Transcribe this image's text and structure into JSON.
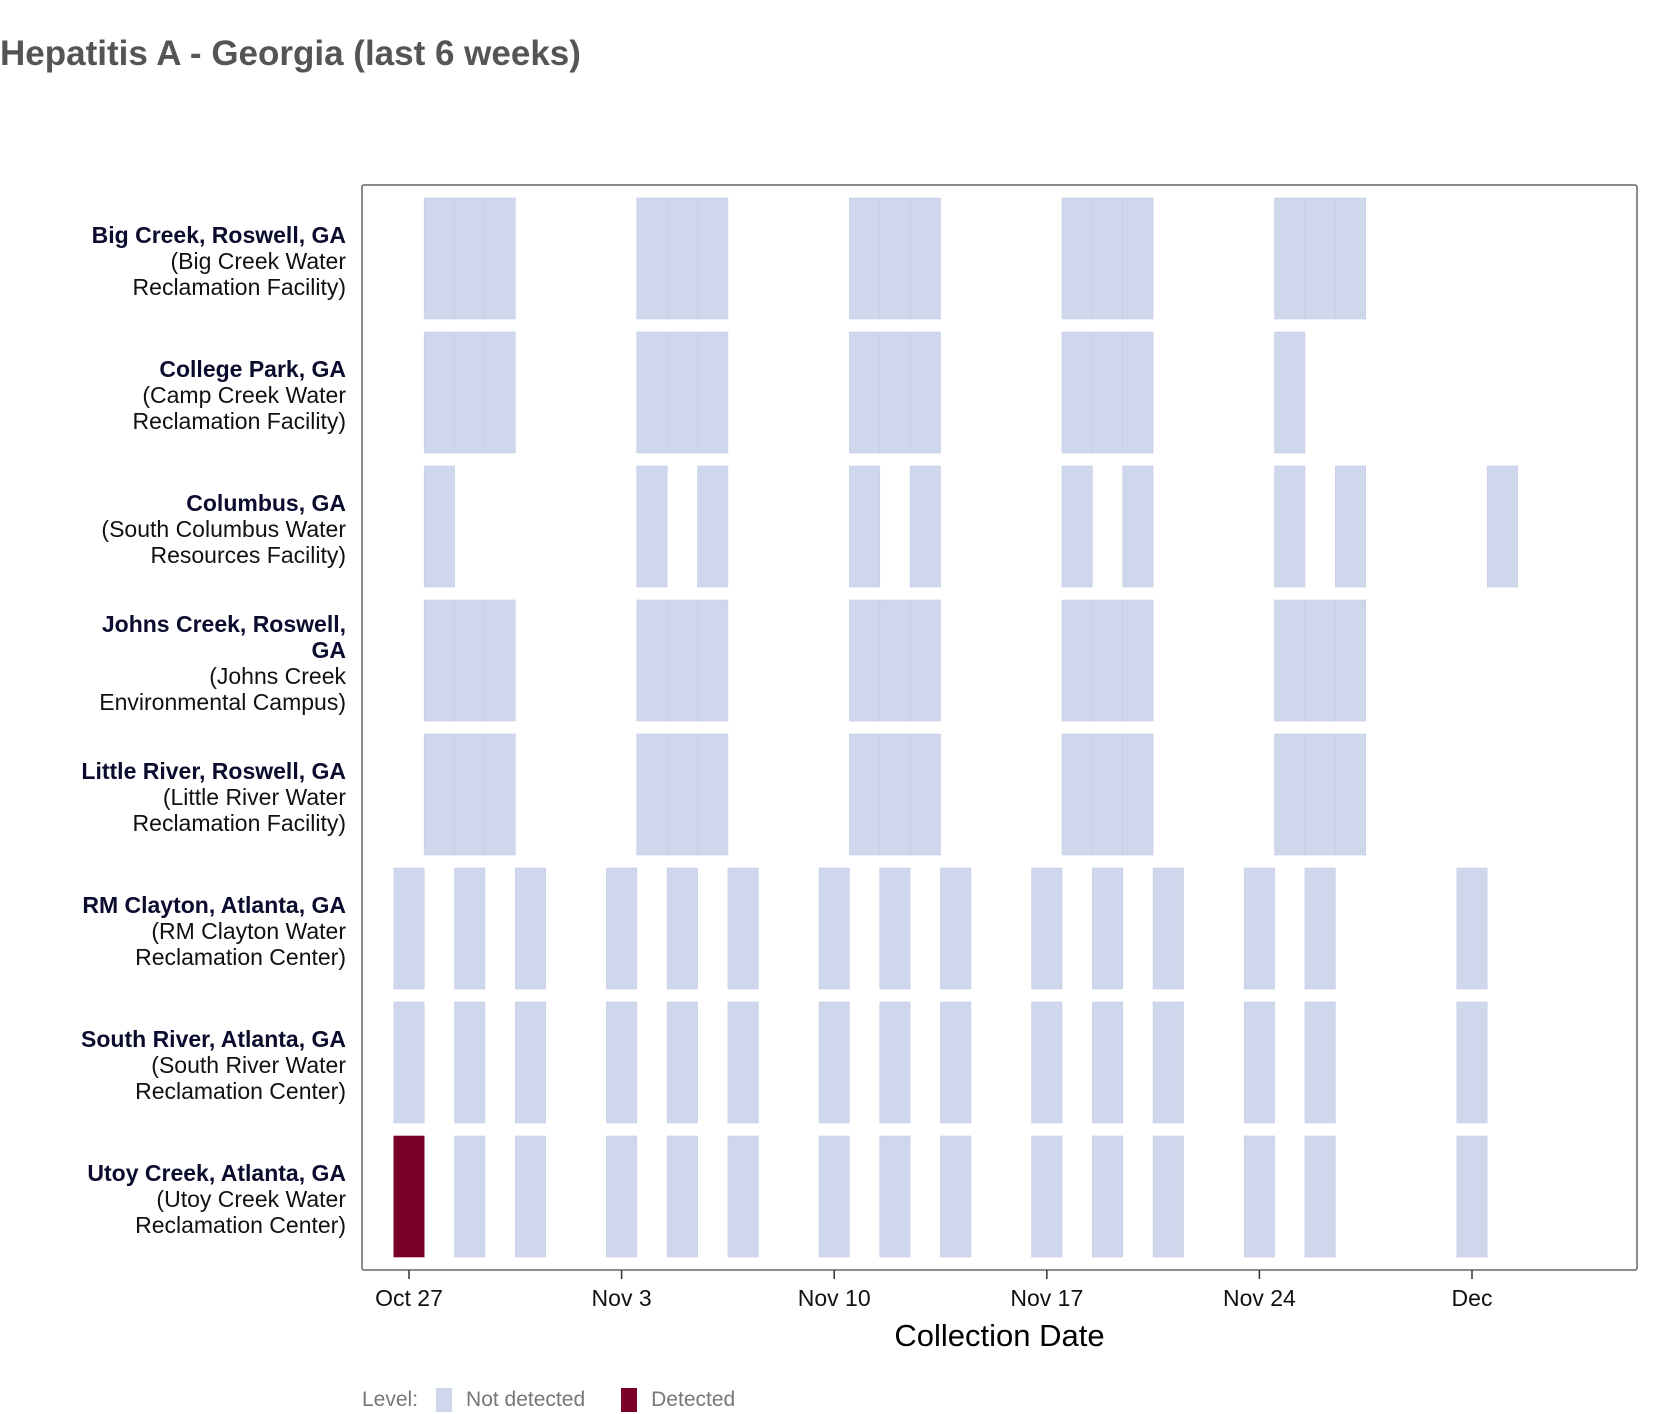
{
  "title": "Hepatitis A - Georgia (last 6 weeks)",
  "chart_data": {
    "type": "heatmap",
    "title": "Hepatitis A - Georgia (last 6 weeks)",
    "xlabel": "Collection Date",
    "ylabel": "",
    "x_ticks": [
      {
        "label": "Oct 27",
        "day": 0
      },
      {
        "label": "Nov 3",
        "day": 7
      },
      {
        "label": "Nov 10",
        "day": 14
      },
      {
        "label": "Nov 17",
        "day": 21
      },
      {
        "label": "Nov 24",
        "day": 28
      },
      {
        "label": "Dec",
        "day": 35
      }
    ],
    "x_range_days": [
      -1.5,
      40.5
    ],
    "day_zero_date": "Oct 27",
    "legend": {
      "title": "Level:",
      "position": "bottom",
      "items": [
        {
          "label": "Not detected",
          "color": "#cfd7ec"
        },
        {
          "label": "Detected",
          "color": "#7a0029"
        }
      ]
    },
    "colors": {
      "Not detected": "#cfd7ec",
      "Detected": "#7a0029"
    },
    "sites": [
      {
        "name": "Big Creek, Roswell, GA",
        "facility": "(Big Creek Water Reclamation Facility)",
        "name_lines": [
          "Big Creek, Roswell, GA"
        ],
        "facility_lines": [
          "(Big Creek Water",
          "Reclamation Facility)"
        ],
        "samples": [
          {
            "day": 1,
            "level": "Not detected"
          },
          {
            "day": 2,
            "level": "Not detected"
          },
          {
            "day": 3,
            "level": "Not detected"
          },
          {
            "day": 8,
            "level": "Not detected"
          },
          {
            "day": 9,
            "level": "Not detected"
          },
          {
            "day": 10,
            "level": "Not detected"
          },
          {
            "day": 15,
            "level": "Not detected"
          },
          {
            "day": 16,
            "level": "Not detected"
          },
          {
            "day": 17,
            "level": "Not detected"
          },
          {
            "day": 22,
            "level": "Not detected"
          },
          {
            "day": 23,
            "level": "Not detected"
          },
          {
            "day": 24,
            "level": "Not detected"
          },
          {
            "day": 29,
            "level": "Not detected"
          },
          {
            "day": 30,
            "level": "Not detected"
          },
          {
            "day": 31,
            "level": "Not detected"
          }
        ]
      },
      {
        "name": "College Park, GA",
        "facility": "(Camp Creek Water Reclamation Facility)",
        "name_lines": [
          "College Park, GA"
        ],
        "facility_lines": [
          "(Camp Creek Water",
          "Reclamation Facility)"
        ],
        "samples": [
          {
            "day": 1,
            "level": "Not detected"
          },
          {
            "day": 2,
            "level": "Not detected"
          },
          {
            "day": 3,
            "level": "Not detected"
          },
          {
            "day": 8,
            "level": "Not detected"
          },
          {
            "day": 9,
            "level": "Not detected"
          },
          {
            "day": 10,
            "level": "Not detected"
          },
          {
            "day": 15,
            "level": "Not detected"
          },
          {
            "day": 16,
            "level": "Not detected"
          },
          {
            "day": 17,
            "level": "Not detected"
          },
          {
            "day": 22,
            "level": "Not detected"
          },
          {
            "day": 23,
            "level": "Not detected"
          },
          {
            "day": 24,
            "level": "Not detected"
          },
          {
            "day": 29,
            "level": "Not detected"
          }
        ]
      },
      {
        "name": "Columbus, GA",
        "facility": "(South Columbus Water Resources Facility)",
        "name_lines": [
          "Columbus, GA"
        ],
        "facility_lines": [
          "(South Columbus Water",
          "Resources Facility)"
        ],
        "samples": [
          {
            "day": 1,
            "level": "Not detected"
          },
          {
            "day": 8,
            "level": "Not detected"
          },
          {
            "day": 10,
            "level": "Not detected"
          },
          {
            "day": 15,
            "level": "Not detected"
          },
          {
            "day": 17,
            "level": "Not detected"
          },
          {
            "day": 22,
            "level": "Not detected"
          },
          {
            "day": 24,
            "level": "Not detected"
          },
          {
            "day": 29,
            "level": "Not detected"
          },
          {
            "day": 31,
            "level": "Not detected"
          },
          {
            "day": 36,
            "level": "Not detected"
          }
        ]
      },
      {
        "name": "Johns Creek, Roswell, GA",
        "facility": "(Johns Creek Environmental Campus)",
        "name_lines": [
          "Johns Creek, Roswell,",
          "GA"
        ],
        "facility_lines": [
          "(Johns Creek",
          "Environmental Campus)"
        ],
        "samples": [
          {
            "day": 1,
            "level": "Not detected"
          },
          {
            "day": 2,
            "level": "Not detected"
          },
          {
            "day": 3,
            "level": "Not detected"
          },
          {
            "day": 8,
            "level": "Not detected"
          },
          {
            "day": 9,
            "level": "Not detected"
          },
          {
            "day": 10,
            "level": "Not detected"
          },
          {
            "day": 15,
            "level": "Not detected"
          },
          {
            "day": 16,
            "level": "Not detected"
          },
          {
            "day": 17,
            "level": "Not detected"
          },
          {
            "day": 22,
            "level": "Not detected"
          },
          {
            "day": 23,
            "level": "Not detected"
          },
          {
            "day": 24,
            "level": "Not detected"
          },
          {
            "day": 29,
            "level": "Not detected"
          },
          {
            "day": 30,
            "level": "Not detected"
          },
          {
            "day": 31,
            "level": "Not detected"
          }
        ]
      },
      {
        "name": "Little River, Roswell, GA",
        "facility": "(Little River Water Reclamation Facility)",
        "name_lines": [
          "Little River, Roswell, GA"
        ],
        "facility_lines": [
          "(Little River Water",
          "Reclamation Facility)"
        ],
        "samples": [
          {
            "day": 1,
            "level": "Not detected"
          },
          {
            "day": 2,
            "level": "Not detected"
          },
          {
            "day": 3,
            "level": "Not detected"
          },
          {
            "day": 8,
            "level": "Not detected"
          },
          {
            "day": 9,
            "level": "Not detected"
          },
          {
            "day": 10,
            "level": "Not detected"
          },
          {
            "day": 15,
            "level": "Not detected"
          },
          {
            "day": 16,
            "level": "Not detected"
          },
          {
            "day": 17,
            "level": "Not detected"
          },
          {
            "day": 22,
            "level": "Not detected"
          },
          {
            "day": 23,
            "level": "Not detected"
          },
          {
            "day": 24,
            "level": "Not detected"
          },
          {
            "day": 29,
            "level": "Not detected"
          },
          {
            "day": 30,
            "level": "Not detected"
          },
          {
            "day": 31,
            "level": "Not detected"
          }
        ]
      },
      {
        "name": "RM Clayton, Atlanta, GA",
        "facility": "(RM Clayton Water Reclamation Center)",
        "name_lines": [
          "RM Clayton, Atlanta, GA"
        ],
        "facility_lines": [
          "(RM Clayton Water",
          "Reclamation Center)"
        ],
        "samples": [
          {
            "day": 0,
            "level": "Not detected"
          },
          {
            "day": 2,
            "level": "Not detected"
          },
          {
            "day": 4,
            "level": "Not detected"
          },
          {
            "day": 7,
            "level": "Not detected"
          },
          {
            "day": 9,
            "level": "Not detected"
          },
          {
            "day": 11,
            "level": "Not detected"
          },
          {
            "day": 14,
            "level": "Not detected"
          },
          {
            "day": 16,
            "level": "Not detected"
          },
          {
            "day": 18,
            "level": "Not detected"
          },
          {
            "day": 21,
            "level": "Not detected"
          },
          {
            "day": 23,
            "level": "Not detected"
          },
          {
            "day": 25,
            "level": "Not detected"
          },
          {
            "day": 28,
            "level": "Not detected"
          },
          {
            "day": 30,
            "level": "Not detected"
          },
          {
            "day": 35,
            "level": "Not detected"
          }
        ]
      },
      {
        "name": "South River, Atlanta, GA",
        "facility": "(South River Water Reclamation Center)",
        "name_lines": [
          "South River, Atlanta, GA"
        ],
        "facility_lines": [
          "(South River Water",
          "Reclamation Center)"
        ],
        "samples": [
          {
            "day": 0,
            "level": "Not detected"
          },
          {
            "day": 2,
            "level": "Not detected"
          },
          {
            "day": 4,
            "level": "Not detected"
          },
          {
            "day": 7,
            "level": "Not detected"
          },
          {
            "day": 9,
            "level": "Not detected"
          },
          {
            "day": 11,
            "level": "Not detected"
          },
          {
            "day": 14,
            "level": "Not detected"
          },
          {
            "day": 16,
            "level": "Not detected"
          },
          {
            "day": 18,
            "level": "Not detected"
          },
          {
            "day": 21,
            "level": "Not detected"
          },
          {
            "day": 23,
            "level": "Not detected"
          },
          {
            "day": 25,
            "level": "Not detected"
          },
          {
            "day": 28,
            "level": "Not detected"
          },
          {
            "day": 30,
            "level": "Not detected"
          },
          {
            "day": 35,
            "level": "Not detected"
          }
        ]
      },
      {
        "name": "Utoy Creek, Atlanta, GA",
        "facility": "(Utoy Creek Water Reclamation Center)",
        "name_lines": [
          "Utoy Creek, Atlanta, GA"
        ],
        "facility_lines": [
          "(Utoy Creek Water",
          "Reclamation Center)"
        ],
        "samples": [
          {
            "day": 0,
            "level": "Detected"
          },
          {
            "day": 2,
            "level": "Not detected"
          },
          {
            "day": 4,
            "level": "Not detected"
          },
          {
            "day": 7,
            "level": "Not detected"
          },
          {
            "day": 9,
            "level": "Not detected"
          },
          {
            "day": 11,
            "level": "Not detected"
          },
          {
            "day": 14,
            "level": "Not detected"
          },
          {
            "day": 16,
            "level": "Not detected"
          },
          {
            "day": 18,
            "level": "Not detected"
          },
          {
            "day": 21,
            "level": "Not detected"
          },
          {
            "day": 23,
            "level": "Not detected"
          },
          {
            "day": 25,
            "level": "Not detected"
          },
          {
            "day": 28,
            "level": "Not detected"
          },
          {
            "day": 30,
            "level": "Not detected"
          },
          {
            "day": 35,
            "level": "Not detected"
          }
        ]
      }
    ]
  }
}
